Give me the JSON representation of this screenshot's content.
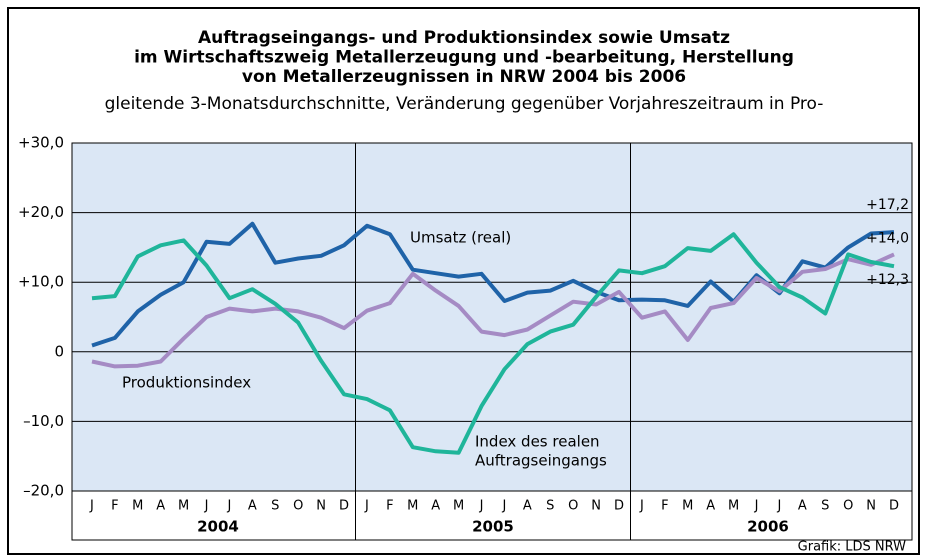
{
  "chart_data": {
    "type": "line",
    "title_lines": [
      "Auftragseingangs- und Produktionsindex sowie Umsatz",
      "im Wirtschaftszweig Metallerzeugung und -bearbeitung, Herstellung",
      "von Metallerzeugnissen in NRW 2004 bis 2006"
    ],
    "subtitle": "gleitende 3-Monatsdurchschnitte, Veränderung gegenüber Vorjahreszeitraum in Pro-",
    "categories": [
      "J",
      "F",
      "M",
      "A",
      "M",
      "J",
      "J",
      "A",
      "S",
      "O",
      "N",
      "D",
      "J",
      "F",
      "M",
      "A",
      "M",
      "J",
      "J",
      "A",
      "S",
      "O",
      "N",
      "D",
      "J",
      "F",
      "M",
      "A",
      "M",
      "J",
      "J",
      "A",
      "S",
      "O",
      "N",
      "D"
    ],
    "years": [
      "2004",
      "2005",
      "2006"
    ],
    "ylim": [
      -20,
      30
    ],
    "yticks": [
      {
        "value": -20,
        "label": "–20,0"
      },
      {
        "value": -10,
        "label": "–10,0"
      },
      0,
      {
        "value": 10,
        "label": "+10,0"
      },
      {
        "value": 20,
        "label": "+20,0"
      },
      {
        "value": 30,
        "label": "+30,0"
      }
    ],
    "grid": true,
    "series": [
      {
        "name": "Umsatz (real)",
        "color": "#1f63a8",
        "values": [
          0.9,
          2.0,
          5.8,
          8.2,
          10.0,
          15.8,
          15.5,
          18.4,
          12.8,
          13.4,
          13.8,
          15.3,
          18.1,
          16.9,
          11.8,
          11.3,
          10.8,
          11.2,
          7.3,
          8.5,
          8.8,
          10.2,
          8.6,
          7.4,
          7.5,
          7.4,
          6.6,
          10.1,
          7.2,
          11.0,
          8.4,
          13.0,
          12.1,
          15.0,
          17.0,
          17.2
        ],
        "value_labels": [
          null,
          null,
          null,
          null,
          null,
          null,
          null,
          null,
          null,
          null,
          null,
          null,
          null,
          null,
          null,
          null,
          null,
          null,
          null,
          null,
          null,
          null,
          null,
          null,
          null,
          null,
          null,
          null,
          null,
          null,
          null,
          null,
          null,
          null,
          null,
          "+17,2"
        ]
      },
      {
        "name": "Produktionsindex",
        "color": "#a58bc4",
        "values": [
          -1.4,
          -2.1,
          -2.0,
          -1.4,
          1.9,
          5.0,
          6.2,
          5.8,
          6.2,
          5.8,
          4.9,
          3.4,
          5.9,
          7.0,
          11.2,
          8.8,
          6.6,
          2.9,
          2.4,
          3.2,
          5.2,
          7.2,
          6.8,
          8.6,
          4.9,
          5.8,
          1.7,
          6.3,
          7.0,
          10.6,
          8.7,
          11.5,
          11.9,
          13.3,
          12.5,
          14.0
        ],
        "value_labels": [
          null,
          null,
          null,
          null,
          null,
          null,
          null,
          null,
          null,
          null,
          null,
          null,
          null,
          null,
          null,
          null,
          null,
          null,
          null,
          null,
          null,
          null,
          null,
          null,
          null,
          null,
          null,
          null,
          null,
          null,
          null,
          null,
          null,
          null,
          null,
          "+14,0"
        ]
      },
      {
        "name": "Index des realen Auftragseingangs",
        "label_lines": [
          "Index des realen",
          "Auftragseingangs"
        ],
        "color": "#1fb59a",
        "values": [
          7.7,
          8.0,
          13.7,
          15.3,
          16.0,
          12.4,
          7.7,
          9.0,
          6.9,
          4.2,
          -1.3,
          -6.1,
          -6.8,
          -8.4,
          -13.7,
          -14.3,
          -14.5,
          -7.8,
          -2.5,
          1.1,
          2.9,
          3.9,
          7.9,
          11.7,
          11.3,
          12.3,
          14.9,
          14.5,
          16.9,
          12.8,
          9.3,
          7.8,
          5.5,
          14.0,
          12.9,
          12.3
        ],
        "value_labels": [
          null,
          null,
          null,
          null,
          null,
          null,
          null,
          null,
          null,
          null,
          null,
          null,
          null,
          null,
          null,
          null,
          null,
          null,
          null,
          null,
          null,
          null,
          null,
          null,
          null,
          null,
          null,
          null,
          null,
          null,
          null,
          null,
          null,
          null,
          null,
          "+12,3"
        ]
      }
    ],
    "source": "Grafik: LDS NRW"
  }
}
